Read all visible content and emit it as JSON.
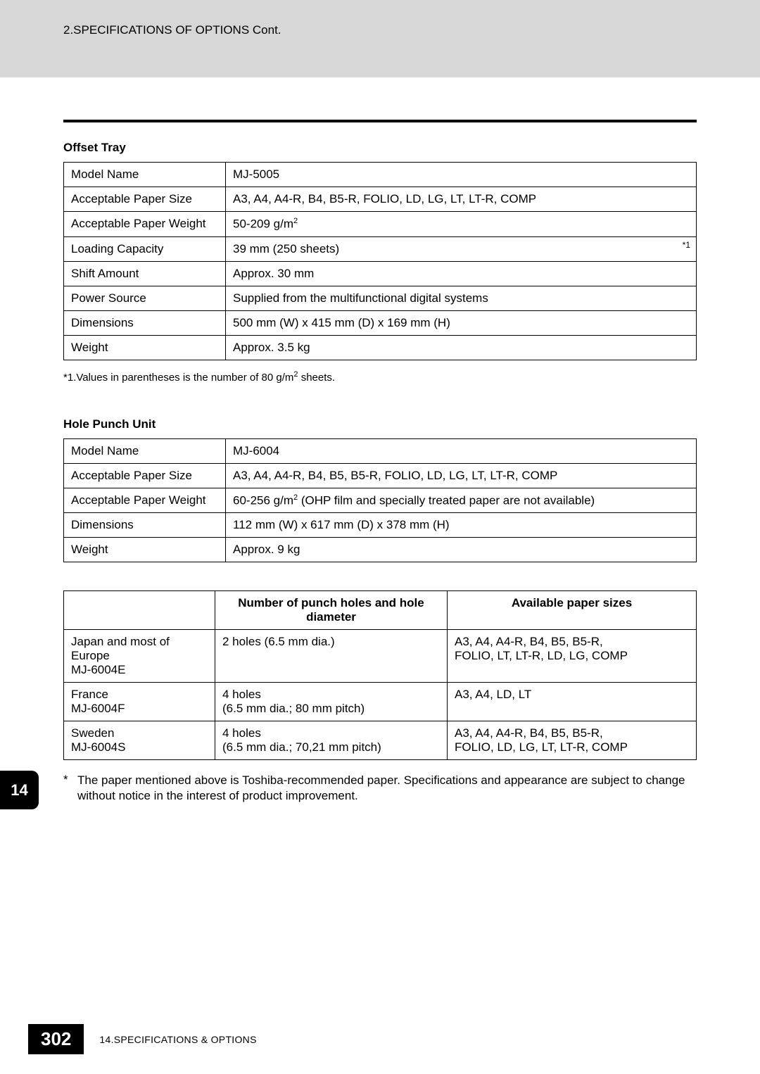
{
  "header": {
    "section_title": "2.SPECIFICATIONS OF OPTIONS Cont."
  },
  "offset_tray": {
    "title": "Offset Tray",
    "rows": [
      {
        "label": "Model Name",
        "value": "MJ-5005",
        "marker": ""
      },
      {
        "label": "Acceptable Paper Size",
        "value": "A3, A4, A4-R, B4, B5-R, FOLIO, LD, LG, LT, LT-R, COMP",
        "marker": ""
      },
      {
        "label": "Acceptable Paper Weight",
        "value": "50-209 g/m",
        "marker": "",
        "sup": "2"
      },
      {
        "label": "Loading Capacity",
        "value": "39 mm (250 sheets)",
        "marker": "*1"
      },
      {
        "label": "Shift Amount",
        "value": "Approx. 30 mm",
        "marker": ""
      },
      {
        "label": "Power Source",
        "value": "Supplied from the multifunctional digital systems",
        "marker": ""
      },
      {
        "label": "Dimensions",
        "value": "500 mm (W) x 415 mm (D) x 169 mm (H)",
        "marker": ""
      },
      {
        "label": "Weight",
        "value": "Approx. 3.5 kg",
        "marker": ""
      }
    ],
    "footnote_prefix": "*1.Values in parentheses is the number of 80 g/m",
    "footnote_sup": "2",
    "footnote_suffix": " sheets."
  },
  "hole_punch": {
    "title": "Hole Punch Unit",
    "rows": [
      {
        "label": "Model Name",
        "value": "MJ-6004"
      },
      {
        "label": "Acceptable Paper Size",
        "value": "A3, A4, A4-R, B4, B5, B5-R, FOLIO, LD, LG, LT, LT-R, COMP"
      },
      {
        "label": "Acceptable Paper Weight",
        "value_pre": "60-256 g/m",
        "value_sup": "2",
        "value_post": " (OHP film and specially treated paper are not available)"
      },
      {
        "label": "Dimensions",
        "value": "112 mm (W) x 617 mm (D) x 378 mm (H)"
      },
      {
        "label": "Weight",
        "value": "Approx. 9 kg"
      }
    ]
  },
  "punch_variants": {
    "col1_header": "Number of punch holes and hole diameter",
    "col2_header": "Available paper sizes",
    "rows": [
      {
        "region_line1": "Japan and most of Europe",
        "region_line2": "MJ-6004E",
        "holes_line1": "2 holes (6.5 mm dia.)",
        "holes_line2": "",
        "sizes_line1": "A3, A4, A4-R, B4, B5, B5-R,",
        "sizes_line2": "FOLIO, LT, LT-R, LD, LG, COMP"
      },
      {
        "region_line1": "France",
        "region_line2": "MJ-6004F",
        "holes_line1": "4 holes",
        "holes_line2": "(6.5 mm dia.; 80 mm pitch)",
        "sizes_line1": "A3, A4, LD, LT",
        "sizes_line2": ""
      },
      {
        "region_line1": "Sweden",
        "region_line2": "MJ-6004S",
        "holes_line1": "4 holes",
        "holes_line2": "(6.5 mm dia.; 70,21 mm pitch)",
        "sizes_line1": "A3, A4, A4-R, B4, B5, B5-R,",
        "sizes_line2": "FOLIO, LD, LG, LT, LT-R, COMP"
      }
    ]
  },
  "note": {
    "star": "*",
    "text": "The paper mentioned above is Toshiba-recommended paper. Specifications and appearance are subject to change without notice in the interest of product improvement."
  },
  "chapter_tab": "14",
  "footer": {
    "page_number": "302",
    "section": "14.SPECIFICATIONS & OPTIONS"
  }
}
